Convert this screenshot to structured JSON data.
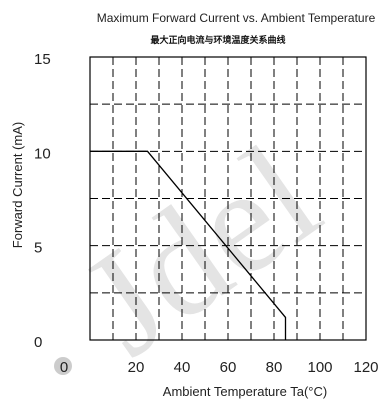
{
  "chart_data": {
    "type": "line",
    "title": "Maximum Forward Current vs. Ambient Temperature",
    "subtitle": "最大正向电流与环境温度关系曲线",
    "xlabel": "Ambient Temperature Ta(°C)",
    "ylabel": "Forward Current (mA)",
    "xlim": [
      0,
      120
    ],
    "ylim": [
      0,
      15
    ],
    "xticks": [
      0,
      20,
      40,
      60,
      80,
      100,
      120
    ],
    "xtick_labels": [
      "0",
      "20",
      "40",
      "60",
      "80",
      "100",
      "120"
    ],
    "yticks": [
      0,
      5,
      10,
      15
    ],
    "ytick_labels": [
      "0",
      "5",
      "10",
      "15"
    ],
    "grid": true,
    "grid_style": "dashed",
    "series": [
      {
        "x": [
          0,
          25,
          85,
          85
        ],
        "y": [
          10,
          10,
          1.2,
          0
        ]
      }
    ],
    "watermark": "Jdel"
  },
  "colors": {
    "line": "#000000",
    "grid": "#000000",
    "watermark": "#e4e4e4",
    "watermark_dot": "#cccccc"
  }
}
